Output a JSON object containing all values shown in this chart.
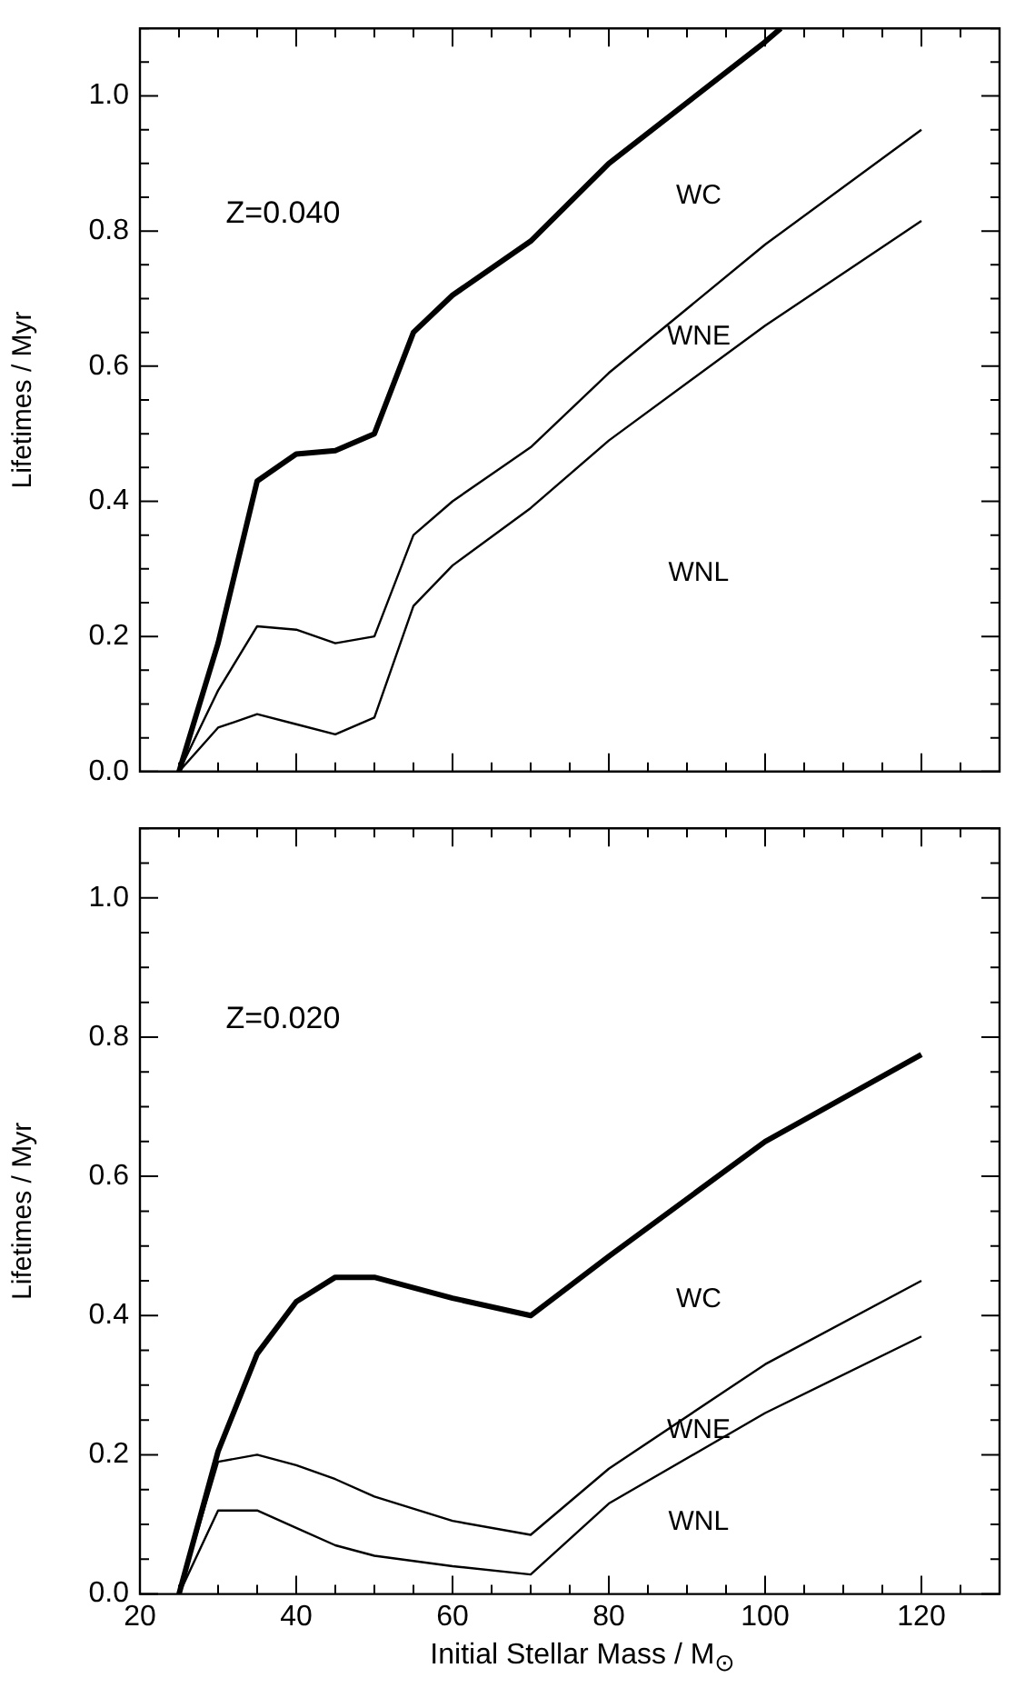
{
  "chart_data": [
    {
      "type": "line",
      "ylabel": "Lifetimes / Myr",
      "tick_labels": "y",
      "xlim": [
        20,
        130
      ],
      "ylim": [
        0,
        1.1
      ],
      "xticks": [
        20,
        {
          "value": 25,
          "label": null
        },
        {
          "value": 30,
          "label": null
        },
        {
          "value": 35,
          "label": null
        },
        40,
        {
          "value": 45,
          "label": null
        },
        {
          "value": 50,
          "label": null
        },
        {
          "value": 55,
          "label": null
        },
        60,
        {
          "value": 65,
          "label": null
        },
        {
          "value": 70,
          "label": null
        },
        {
          "value": 75,
          "label": null
        },
        80,
        {
          "value": 85,
          "label": null
        },
        {
          "value": 90,
          "label": null
        },
        {
          "value": 95,
          "label": null
        },
        100,
        {
          "value": 105,
          "label": null
        },
        {
          "value": 110,
          "label": null
        },
        {
          "value": 115,
          "label": null
        },
        120,
        {
          "value": 125,
          "label": null
        },
        130
      ],
      "yticks": [
        {
          "value": 0.0,
          "label": "0.0"
        },
        {
          "value": 0.05,
          "label": null
        },
        {
          "value": 0.1,
          "label": null
        },
        {
          "value": 0.15,
          "label": null
        },
        {
          "value": 0.2,
          "label": "0.2"
        },
        {
          "value": 0.25,
          "label": null
        },
        {
          "value": 0.3,
          "label": null
        },
        {
          "value": 0.35,
          "label": null
        },
        {
          "value": 0.4,
          "label": "0.4"
        },
        {
          "value": 0.45,
          "label": null
        },
        {
          "value": 0.5,
          "label": null
        },
        {
          "value": 0.55,
          "label": null
        },
        {
          "value": 0.6,
          "label": "0.6"
        },
        {
          "value": 0.65,
          "label": null
        },
        {
          "value": 0.7,
          "label": null
        },
        {
          "value": 0.75,
          "label": null
        },
        {
          "value": 0.8,
          "label": "0.8"
        },
        {
          "value": 0.85,
          "label": null
        },
        {
          "value": 0.9,
          "label": null
        },
        {
          "value": 0.95,
          "label": null
        },
        {
          "value": 1.0,
          "label": "1.0"
        },
        {
          "value": 1.05,
          "label": null
        },
        {
          "value": 1.1,
          "label": null
        }
      ],
      "x": [
        25,
        30,
        35,
        40,
        45,
        50,
        55,
        60,
        70,
        80,
        100,
        120
      ],
      "series": [
        {
          "color": "#000000",
          "x": [
            25,
            30,
            35,
            40,
            45,
            50,
            55,
            60,
            70,
            80,
            100,
            102
          ],
          "values": [
            0,
            0.19,
            0.43,
            0.47,
            0.475,
            0.5,
            0.65,
            0.705,
            0.785,
            0.9,
            1.08,
            1.1
          ]
        },
        {
          "color": "#000000",
          "values": [
            0,
            0.12,
            0.215,
            0.21,
            0.19,
            0.2,
            0.35,
            0.4,
            0.48,
            0.59,
            0.78,
            0.95
          ]
        },
        {
          "color": "#000000",
          "values": [
            0,
            0.065,
            0.085,
            0.07,
            0.055,
            0.08,
            0.245,
            0.305,
            0.39,
            0.49,
            0.66,
            0.815
          ]
        }
      ],
      "annotations": [
        "Z=0.040",
        "WC",
        "WNE",
        "WNL"
      ]
    },
    {
      "type": "line",
      "xlabel": "Initial Stellar Mass  / M$_{⊙}$",
      "ylabel": "Lifetimes / Myr",
      "xlim": [
        20,
        130
      ],
      "ylim": [
        0,
        1.1
      ],
      "xticks": [
        20,
        {
          "value": 25,
          "label": null
        },
        {
          "value": 30,
          "label": null
        },
        {
          "value": 35,
          "label": null
        },
        40,
        {
          "value": 45,
          "label": null
        },
        {
          "value": 50,
          "label": null
        },
        {
          "value": 55,
          "label": null
        },
        60,
        {
          "value": 65,
          "label": null
        },
        {
          "value": 70,
          "label": null
        },
        {
          "value": 75,
          "label": null
        },
        80,
        {
          "value": 85,
          "label": null
        },
        {
          "value": 90,
          "label": null
        },
        {
          "value": 95,
          "label": null
        },
        100,
        {
          "value": 105,
          "label": null
        },
        {
          "value": 110,
          "label": null
        },
        {
          "value": 115,
          "label": null
        },
        120,
        {
          "value": 125,
          "label": null
        },
        {
          "value": 130,
          "label": null
        }
      ],
      "yticks": [
        {
          "value": 0.0,
          "label": "0.0"
        },
        {
          "value": 0.05,
          "label": null
        },
        {
          "value": 0.1,
          "label": null
        },
        {
          "value": 0.15,
          "label": null
        },
        {
          "value": 0.2,
          "label": "0.2"
        },
        {
          "value": 0.25,
          "label": null
        },
        {
          "value": 0.3,
          "label": null
        },
        {
          "value": 0.35,
          "label": null
        },
        {
          "value": 0.4,
          "label": "0.4"
        },
        {
          "value": 0.45,
          "label": null
        },
        {
          "value": 0.5,
          "label": null
        },
        {
          "value": 0.55,
          "label": null
        },
        {
          "value": 0.6,
          "label": "0.6"
        },
        {
          "value": 0.65,
          "label": null
        },
        {
          "value": 0.7,
          "label": null
        },
        {
          "value": 0.75,
          "label": null
        },
        {
          "value": 0.8,
          "label": "0.8"
        },
        {
          "value": 0.85,
          "label": null
        },
        {
          "value": 0.9,
          "label": null
        },
        {
          "value": 0.95,
          "label": null
        },
        {
          "value": 1.0,
          "label": "1.0"
        },
        {
          "value": 1.05,
          "label": null
        },
        {
          "value": 1.1,
          "label": null
        }
      ],
      "x": [
        25,
        30,
        35,
        40,
        45,
        50,
        60,
        70,
        80,
        100,
        120
      ],
      "series": [
        {
          "color": "#000000",
          "values": [
            0,
            0.205,
            0.345,
            0.42,
            0.455,
            0.455,
            0.425,
            0.4,
            0.485,
            0.65,
            0.775
          ]
        },
        {
          "color": "#000000",
          "values": [
            0,
            0.19,
            0.2,
            0.185,
            0.165,
            0.14,
            0.105,
            0.085,
            0.18,
            0.33,
            0.45
          ]
        },
        {
          "color": "#000000",
          "values": [
            0,
            0.12,
            0.12,
            0.095,
            0.07,
            0.055,
            0.04,
            0.028,
            0.13,
            0.26,
            0.37
          ]
        }
      ],
      "annotations": [
        "Z=0.020",
        "WC",
        "WNE",
        "WNL"
      ]
    }
  ]
}
